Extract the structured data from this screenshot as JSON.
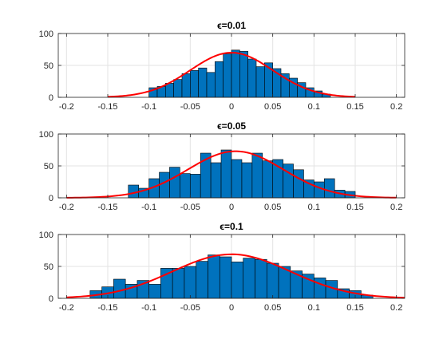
{
  "chart_data": [
    {
      "type": "bar",
      "title": "ϵ=0.01",
      "xlabel": "",
      "ylabel": "",
      "xlim": [
        -0.21,
        0.21
      ],
      "ylim": [
        0,
        100
      ],
      "xticks": [
        -0.2,
        -0.15,
        -0.1,
        -0.05,
        0,
        0.05,
        0.1,
        0.15,
        0.2
      ],
      "yticks": [
        0,
        50,
        100
      ],
      "grid": true,
      "bin_width": 0.01,
      "bin_centers": [
        -0.095,
        -0.085,
        -0.075,
        -0.065,
        -0.055,
        -0.045,
        -0.035,
        -0.025,
        -0.015,
        -0.005,
        0.005,
        0.015,
        0.025,
        0.035,
        0.045,
        0.055,
        0.065,
        0.075,
        0.085,
        0.095,
        0.105,
        0.115
      ],
      "values": [
        15,
        17,
        22,
        28,
        37,
        42,
        46,
        39,
        56,
        68,
        74,
        72,
        60,
        48,
        54,
        45,
        37,
        30,
        23,
        15,
        10,
        5
      ],
      "bar_color": "#0072BD",
      "fit": {
        "label": "",
        "mean": 0,
        "sigma": 0.05,
        "peak": 70,
        "range": [
          -0.15,
          0.15
        ],
        "color": "#ff0000"
      }
    },
    {
      "type": "bar",
      "title": "ϵ=0.05",
      "xlabel": "",
      "ylabel": "",
      "xlim": [
        -0.21,
        0.21
      ],
      "ylim": [
        0,
        100
      ],
      "xticks": [
        -0.2,
        -0.15,
        -0.1,
        -0.05,
        0,
        0.05,
        0.1,
        0.15,
        0.2
      ],
      "yticks": [
        0,
        50,
        100
      ],
      "grid": true,
      "bin_width": 0.0125,
      "bin_centers": [
        -0.1188,
        -0.1063,
        -0.0938,
        -0.0813,
        -0.0688,
        -0.0563,
        -0.0438,
        -0.0313,
        -0.0188,
        -0.0063,
        0.0063,
        0.0188,
        0.0313,
        0.0438,
        0.0563,
        0.0688,
        0.0813,
        0.0938,
        0.1063,
        0.1188,
        0.1313,
        0.1438
      ],
      "values": [
        20,
        15,
        30,
        40,
        48,
        38,
        37,
        70,
        55,
        75,
        60,
        55,
        70,
        58,
        60,
        53,
        44,
        28,
        25,
        30,
        12,
        10
      ],
      "bar_color": "#0072BD",
      "fit": {
        "label": "",
        "mean": 0.005,
        "sigma": 0.058,
        "peak": 73,
        "range": [
          -0.2,
          0.2
        ],
        "color": "#ff0000"
      }
    },
    {
      "type": "bar",
      "title": "ϵ=0.1",
      "xlabel": "",
      "ylabel": "",
      "xlim": [
        -0.21,
        0.21
      ],
      "ylim": [
        0,
        100
      ],
      "xticks": [
        -0.2,
        -0.15,
        -0.1,
        -0.05,
        0,
        0.05,
        0.1,
        0.15,
        0.2
      ],
      "yticks": [
        0,
        50,
        100
      ],
      "grid": true,
      "bin_width": 0.0143,
      "bin_centers": [
        -0.1643,
        -0.15,
        -0.1357,
        -0.1214,
        -0.1071,
        -0.0929,
        -0.0786,
        -0.0643,
        -0.05,
        -0.0357,
        -0.0214,
        -0.0071,
        0.0071,
        0.0214,
        0.0357,
        0.05,
        0.0643,
        0.0786,
        0.0929,
        0.1071,
        0.1214,
        0.1357,
        0.15,
        0.1643
      ],
      "values": [
        12,
        18,
        30,
        22,
        28,
        22,
        47,
        47,
        50,
        58,
        68,
        65,
        57,
        63,
        61,
        55,
        50,
        43,
        38,
        32,
        28,
        15,
        12,
        5
      ],
      "bar_color": "#0072BD",
      "fit": {
        "label": "",
        "mean": 0,
        "sigma": 0.072,
        "peak": 69,
        "range": [
          -0.2,
          0.21
        ],
        "color": "#ff0000"
      }
    }
  ]
}
